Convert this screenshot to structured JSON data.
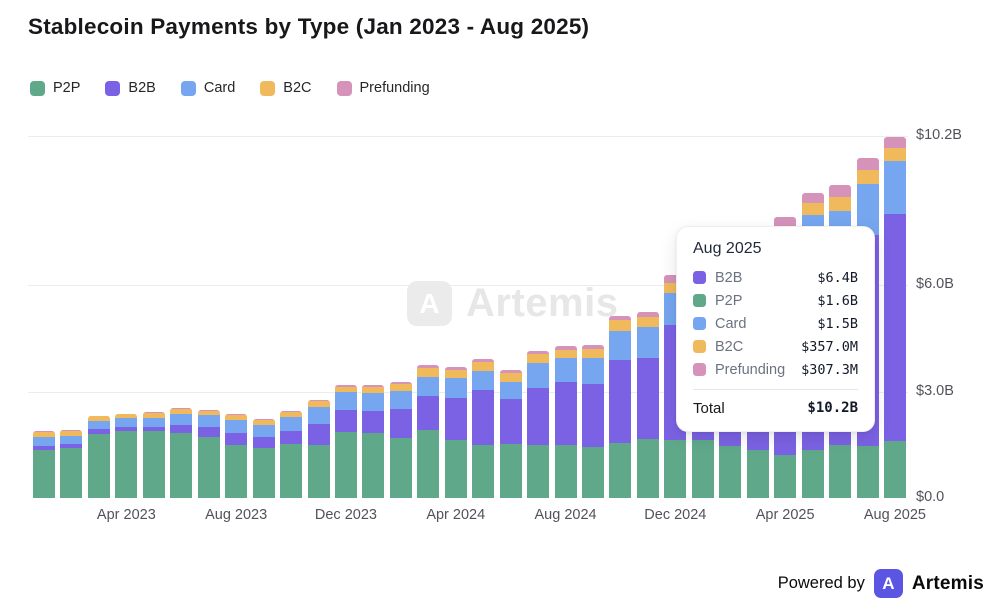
{
  "page": {
    "title": "Stablecoin Payments by Type (Jan 2023 - Aug 2025)"
  },
  "legend": {
    "items": [
      {
        "label": "P2P",
        "color": "#5fa98a"
      },
      {
        "label": "B2B",
        "color": "#7b62e4"
      },
      {
        "label": "Card",
        "color": "#75a6ef"
      },
      {
        "label": "B2C",
        "color": "#f0ba5c"
      },
      {
        "label": "Prefunding",
        "color": "#d593ba"
      }
    ]
  },
  "chart_data": {
    "type": "bar",
    "stacked": true,
    "title": "Stablecoin Payments by Type (Jan 2023 - Aug 2025)",
    "unit": "$B",
    "grid": "horizontal",
    "legend_position": "top-left",
    "ylim": [
      0,
      10.2
    ],
    "categories": [
      "Jan 2023",
      "Feb 2023",
      "Mar 2023",
      "Apr 2023",
      "May 2023",
      "Jun 2023",
      "Jul 2023",
      "Aug 2023",
      "Sep 2023",
      "Oct 2023",
      "Nov 2023",
      "Dec 2023",
      "Jan 2024",
      "Feb 2024",
      "Mar 2024",
      "Apr 2024",
      "May 2024",
      "Jun 2024",
      "Jul 2024",
      "Aug 2024",
      "Sep 2024",
      "Oct 2024",
      "Nov 2024",
      "Dec 2024",
      "Jan 2025",
      "Feb 2025",
      "Mar 2025",
      "Apr 2025",
      "May 2025",
      "Jun 2025",
      "Jul 2025",
      "Aug 2025"
    ],
    "series": [
      {
        "name": "P2P",
        "color": "#5fa98a",
        "values": [
          1.35,
          1.4,
          1.8,
          1.88,
          1.88,
          1.83,
          1.73,
          1.5,
          1.42,
          1.52,
          1.48,
          1.85,
          1.82,
          1.69,
          1.92,
          1.64,
          1.48,
          1.53,
          1.5,
          1.48,
          1.43,
          1.55,
          1.65,
          1.64,
          1.63,
          1.46,
          1.34,
          1.2,
          1.34,
          1.48,
          1.46,
          1.6
        ]
      },
      {
        "name": "B2B",
        "color": "#7b62e4",
        "values": [
          0.12,
          0.11,
          0.15,
          0.12,
          0.13,
          0.23,
          0.26,
          0.33,
          0.31,
          0.38,
          0.61,
          0.63,
          0.64,
          0.81,
          0.96,
          1.17,
          1.57,
          1.26,
          1.59,
          1.78,
          1.78,
          2.34,
          2.28,
          3.24,
          3.45,
          3.85,
          4.3,
          4.9,
          5.33,
          5.25,
          5.94,
          6.4
        ]
      },
      {
        "name": "Card",
        "color": "#75a6ef",
        "values": [
          0.25,
          0.25,
          0.23,
          0.24,
          0.25,
          0.32,
          0.34,
          0.38,
          0.33,
          0.37,
          0.47,
          0.5,
          0.49,
          0.51,
          0.53,
          0.56,
          0.53,
          0.49,
          0.7,
          0.67,
          0.72,
          0.81,
          0.9,
          0.88,
          0.95,
          1.0,
          1.1,
          1.2,
          1.3,
          1.35,
          1.45,
          1.5
        ]
      },
      {
        "name": "B2C",
        "color": "#f0ba5c",
        "values": [
          0.15,
          0.14,
          0.12,
          0.12,
          0.13,
          0.14,
          0.13,
          0.14,
          0.14,
          0.15,
          0.16,
          0.15,
          0.19,
          0.19,
          0.25,
          0.24,
          0.25,
          0.24,
          0.28,
          0.24,
          0.26,
          0.31,
          0.28,
          0.3,
          0.32,
          0.33,
          0.34,
          0.35,
          0.33,
          0.4,
          0.38,
          0.357
        ]
      },
      {
        "name": "Prefunding",
        "color": "#d593ba",
        "values": [
          0.02,
          0.02,
          0.02,
          0.02,
          0.02,
          0.02,
          0.02,
          0.02,
          0.02,
          0.02,
          0.03,
          0.06,
          0.03,
          0.08,
          0.09,
          0.07,
          0.09,
          0.09,
          0.07,
          0.11,
          0.11,
          0.13,
          0.13,
          0.22,
          0.2,
          0.22,
          0.24,
          0.26,
          0.28,
          0.33,
          0.35,
          0.3073
        ]
      }
    ],
    "y_ticks": [
      {
        "label": "$0.0",
        "value": 0
      },
      {
        "label": "$3.0B",
        "value": 3
      },
      {
        "label": "$6.0B",
        "value": 6
      },
      {
        "label": "$10.2B",
        "value": 10.2
      }
    ],
    "x_ticks": [
      "Apr 2023",
      "Aug 2023",
      "Dec 2023",
      "Apr 2024",
      "Aug 2024",
      "Dec 2024",
      "Apr 2025",
      "Aug 2025"
    ]
  },
  "tooltip": {
    "title": "Aug 2025",
    "rows": [
      {
        "label": "B2B",
        "value": "$6.4B",
        "series": "B2B"
      },
      {
        "label": "P2P",
        "value": "$1.6B",
        "series": "P2P"
      },
      {
        "label": "Card",
        "value": "$1.5B",
        "series": "Card"
      },
      {
        "label": "B2C",
        "value": "$357.0M",
        "series": "B2C"
      },
      {
        "label": "Prefunding",
        "value": "$307.3M",
        "series": "Prefunding"
      }
    ],
    "total_label": "Total",
    "total_value": "$10.2B"
  },
  "watermark": {
    "logo_glyph": "A",
    "brand": "Artemis"
  },
  "footer": {
    "powered_by": "Powered by",
    "logo_glyph": "A",
    "brand": "Artemis"
  }
}
